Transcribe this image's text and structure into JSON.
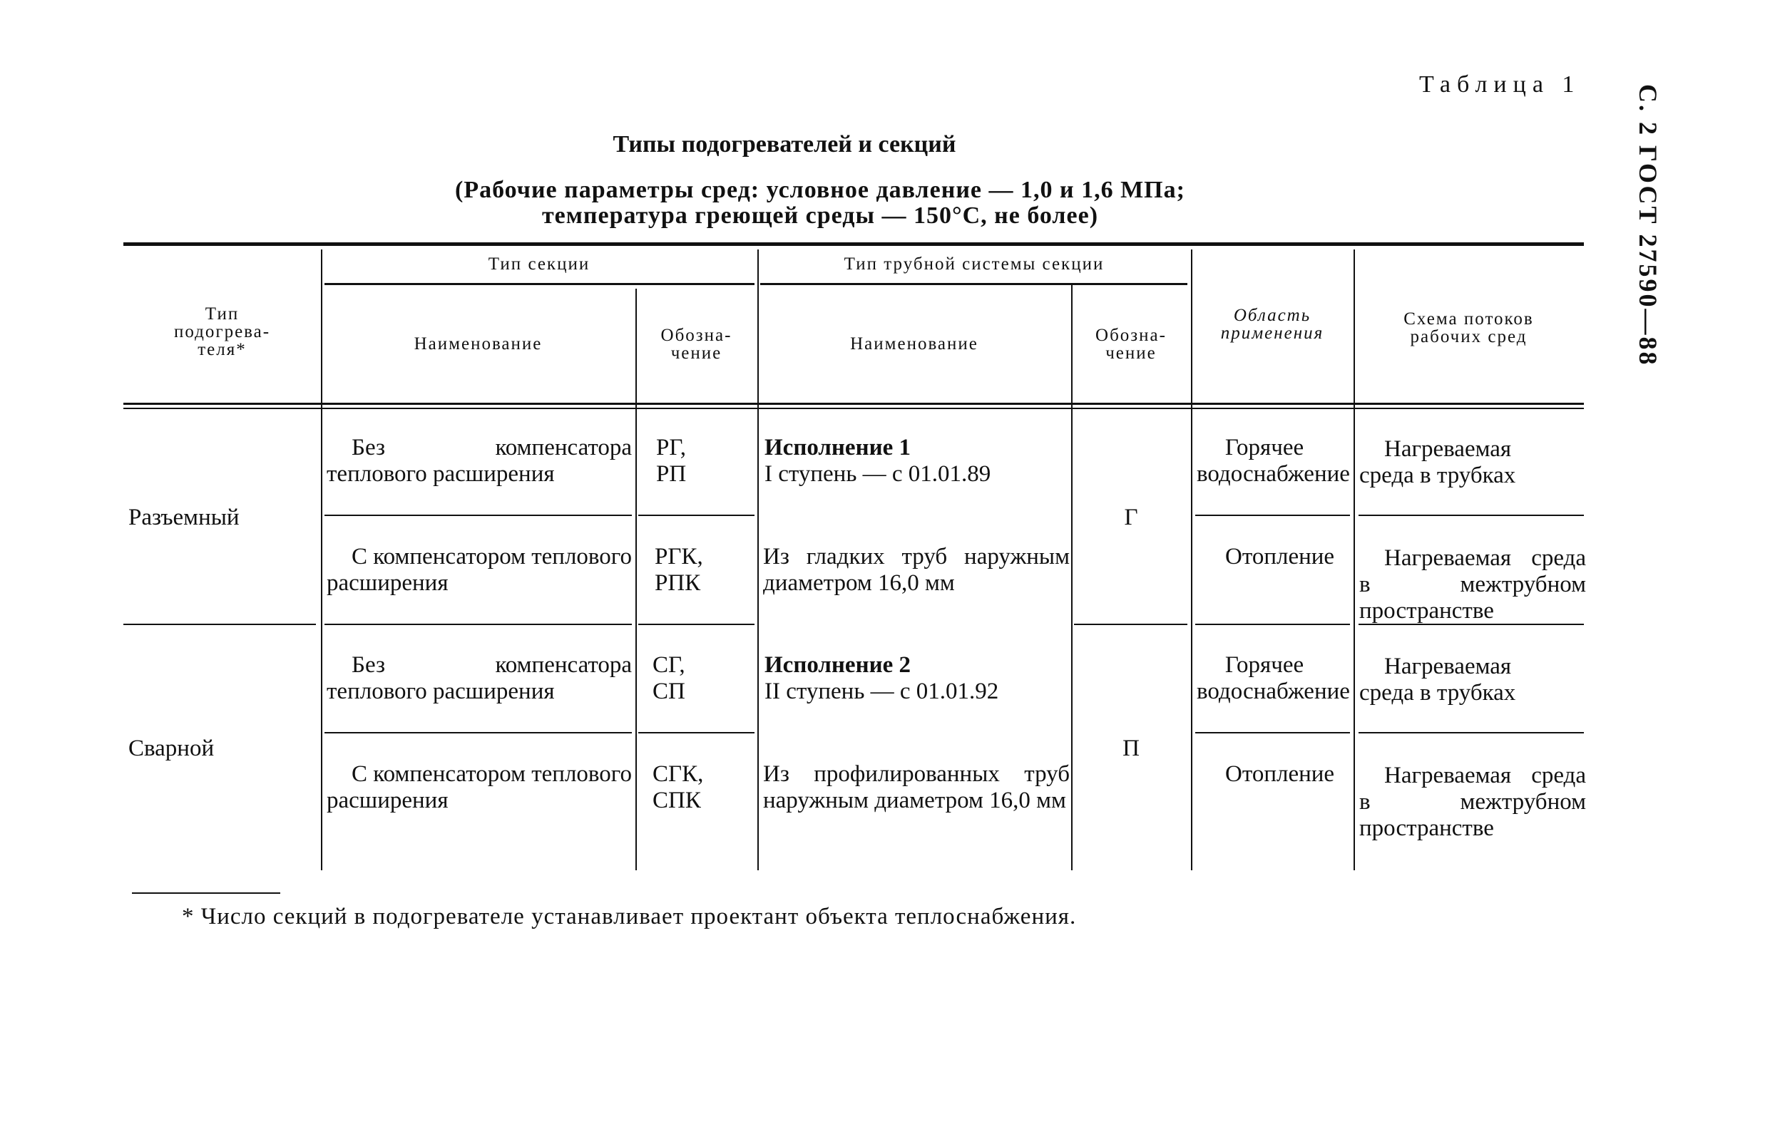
{
  "side_label": "С. 2 ГОСТ 27590—88",
  "table_label": "Таблица 1",
  "title": "Типы подогревателей и секций",
  "subtitle_line1": "(Рабочие параметры сред: условное давление — 1,0 и 1,6 МПа;",
  "subtitle_line2": "температура греющей среды — 150°С, не более)",
  "headers": {
    "heater_type": "Тип подогрева-теля*",
    "section_type": "Тип секции",
    "tube_system": "Тип трубной системы секции",
    "name1": "Наименование",
    "designation1": "Обозна-чение",
    "name2": "Наименование",
    "designation2": "Обозна-чение",
    "application": "Область применения",
    "flow_scheme": "Схема потоков рабочих сред"
  },
  "groups": [
    {
      "heater_type": "Разъемный",
      "tube_designation": "Г",
      "tube_execution": "Исполнение 1",
      "tube_stage": "I ступень — с 01.01.89",
      "tube_description": "Из гладких труб наружным диаметром 16,0 мм",
      "rows": [
        {
          "section_name": "Без компенсатора теплового расширения",
          "designation": "РГ, РП",
          "application": "Горячее водоснабжение",
          "flow": "Нагреваемая среда в трубках"
        },
        {
          "section_name": "С компенсатором теплового расширения",
          "designation": "РГК, РПК",
          "application": "Отопление",
          "flow": "Нагреваемая среда в межтрубном пространстве"
        }
      ]
    },
    {
      "heater_type": "Сварной",
      "tube_designation": "П",
      "tube_execution": "Исполнение 2",
      "tube_stage": "II ступень — с 01.01.92",
      "tube_description": "Из профилированных труб наружным диаметром 16,0 мм",
      "rows": [
        {
          "section_name": "Без компенсатора теплового расширения",
          "designation": "СГ, СП",
          "application": "Горячее водоснабжение",
          "flow": "Нагреваемая среда в трубках"
        },
        {
          "section_name": "С компенсатором теплового расширения",
          "designation": "СГК, СПК",
          "application": "Отопление",
          "flow": "Нагреваемая среда в межтрубном пространстве"
        }
      ]
    }
  ],
  "footnote": "* Число секций в подогревателе устанавливает проектант объекта теплоснабжения."
}
